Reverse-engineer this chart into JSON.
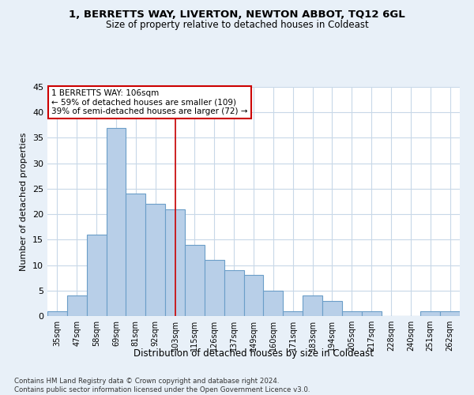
{
  "title1": "1, BERRETTS WAY, LIVERTON, NEWTON ABBOT, TQ12 6GL",
  "title2": "Size of property relative to detached houses in Coldeast",
  "xlabel": "Distribution of detached houses by size in Coldeast",
  "ylabel": "Number of detached properties",
  "categories": [
    "35sqm",
    "47sqm",
    "58sqm",
    "69sqm",
    "81sqm",
    "92sqm",
    "103sqm",
    "115sqm",
    "126sqm",
    "137sqm",
    "149sqm",
    "160sqm",
    "171sqm",
    "183sqm",
    "194sqm",
    "205sqm",
    "217sqm",
    "228sqm",
    "240sqm",
    "251sqm",
    "262sqm"
  ],
  "values": [
    1,
    4,
    16,
    37,
    24,
    22,
    21,
    14,
    11,
    9,
    8,
    5,
    1,
    4,
    3,
    1,
    1,
    0,
    0,
    1,
    1
  ],
  "bar_color": "#b8cfe8",
  "bar_edge_color": "#6b9ec8",
  "vline_idx": 6,
  "vline_color": "#cc0000",
  "annotation_line1": "1 BERRETTS WAY: 106sqm",
  "annotation_line2": "← 59% of detached houses are smaller (109)",
  "annotation_line3": "39% of semi-detached houses are larger (72) →",
  "footer_text": "Contains HM Land Registry data © Crown copyright and database right 2024.\nContains public sector information licensed under the Open Government Licence v3.0.",
  "ylim": [
    0,
    45
  ],
  "yticks": [
    0,
    5,
    10,
    15,
    20,
    25,
    30,
    35,
    40,
    45
  ],
  "bg_color": "#e8f0f8",
  "plot_bg_color": "#ffffff",
  "grid_color": "#c8d8e8"
}
